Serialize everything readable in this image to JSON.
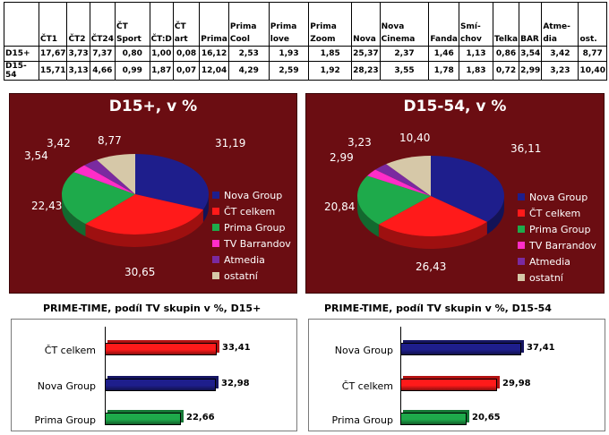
{
  "table": {
    "headers": [
      "",
      "ČT1",
      "ČT2",
      "ČT24",
      "ČT Sport",
      "ČT:D",
      "ČT art",
      "Prima",
      "Prima Cool",
      "Prima love",
      "Prima Zoom",
      "Nova",
      "Nova Cinema",
      "Fanda",
      "Smí-chov",
      "Telka",
      "BAR",
      "Atme-dia",
      "ost."
    ],
    "rows": [
      {
        "label": "D15+",
        "values": [
          "17,67",
          "3,73",
          "7,37",
          "0,80",
          "1,00",
          "0,08",
          "16,12",
          "2,53",
          "1,93",
          "1,85",
          "25,37",
          "2,37",
          "1,46",
          "1,13",
          "0,86",
          "3,54",
          "3,42",
          "8,77"
        ]
      },
      {
        "label": "D15-54",
        "values": [
          "15,71",
          "3,13",
          "4,66",
          "0,99",
          "1,87",
          "0,07",
          "12,04",
          "4,29",
          "2,59",
          "1,92",
          "28,23",
          "3,55",
          "1,78",
          "1,83",
          "0,72",
          "2,99",
          "3,23",
          "10,40"
        ]
      }
    ]
  },
  "colors": {
    "nova": "#1e1e8c",
    "ct": "#ff1a1a",
    "prima": "#1eaa4b",
    "barrandov": "#ff2dc8",
    "atmedia": "#7a2aa0",
    "ostatni": "#d6c8a8",
    "panel_bg": "#6b0d12"
  },
  "chart_data": [
    {
      "type": "pie",
      "title": "D15+, v %",
      "categories": [
        "Nova Group",
        "ČT celkem",
        "Prima Group",
        "TV Barrandov",
        "Atmedia",
        "ostatní"
      ],
      "values": [
        31.19,
        30.65,
        22.43,
        3.54,
        3.42,
        8.77
      ],
      "labels": [
        "31,19",
        "30,65",
        "22,43",
        "3,54",
        "3,42",
        "8,77"
      ],
      "legend": "right"
    },
    {
      "type": "pie",
      "title": "D15-54, v %",
      "categories": [
        "Nova Group",
        "ČT celkem",
        "Prima Group",
        "TV Barrandov",
        "Atmedia",
        "ostatní"
      ],
      "values": [
        36.11,
        26.43,
        20.84,
        2.99,
        3.23,
        10.4
      ],
      "labels": [
        "36,11",
        "26,43",
        "20,84",
        "2,99",
        "3,23",
        "10,40"
      ],
      "legend": "right"
    },
    {
      "type": "bar",
      "title": "PRIME-TIME, podíl TV skupin v %, D15+",
      "categories": [
        "ČT celkem",
        "Nova Group",
        "Prima Group"
      ],
      "values": [
        33.41,
        32.98,
        22.66
      ],
      "labels": [
        "33,41",
        "32,98",
        "22,66"
      ],
      "orientation": "horizontal"
    },
    {
      "type": "bar",
      "title": "PRIME-TIME, podíl TV skupin v %, D15-54",
      "categories": [
        "Nova Group",
        "ČT celkem",
        "Prima Group"
      ],
      "values": [
        37.41,
        29.98,
        20.65
      ],
      "labels": [
        "37,41",
        "29,98",
        "20,65"
      ],
      "orientation": "horizontal"
    }
  ]
}
